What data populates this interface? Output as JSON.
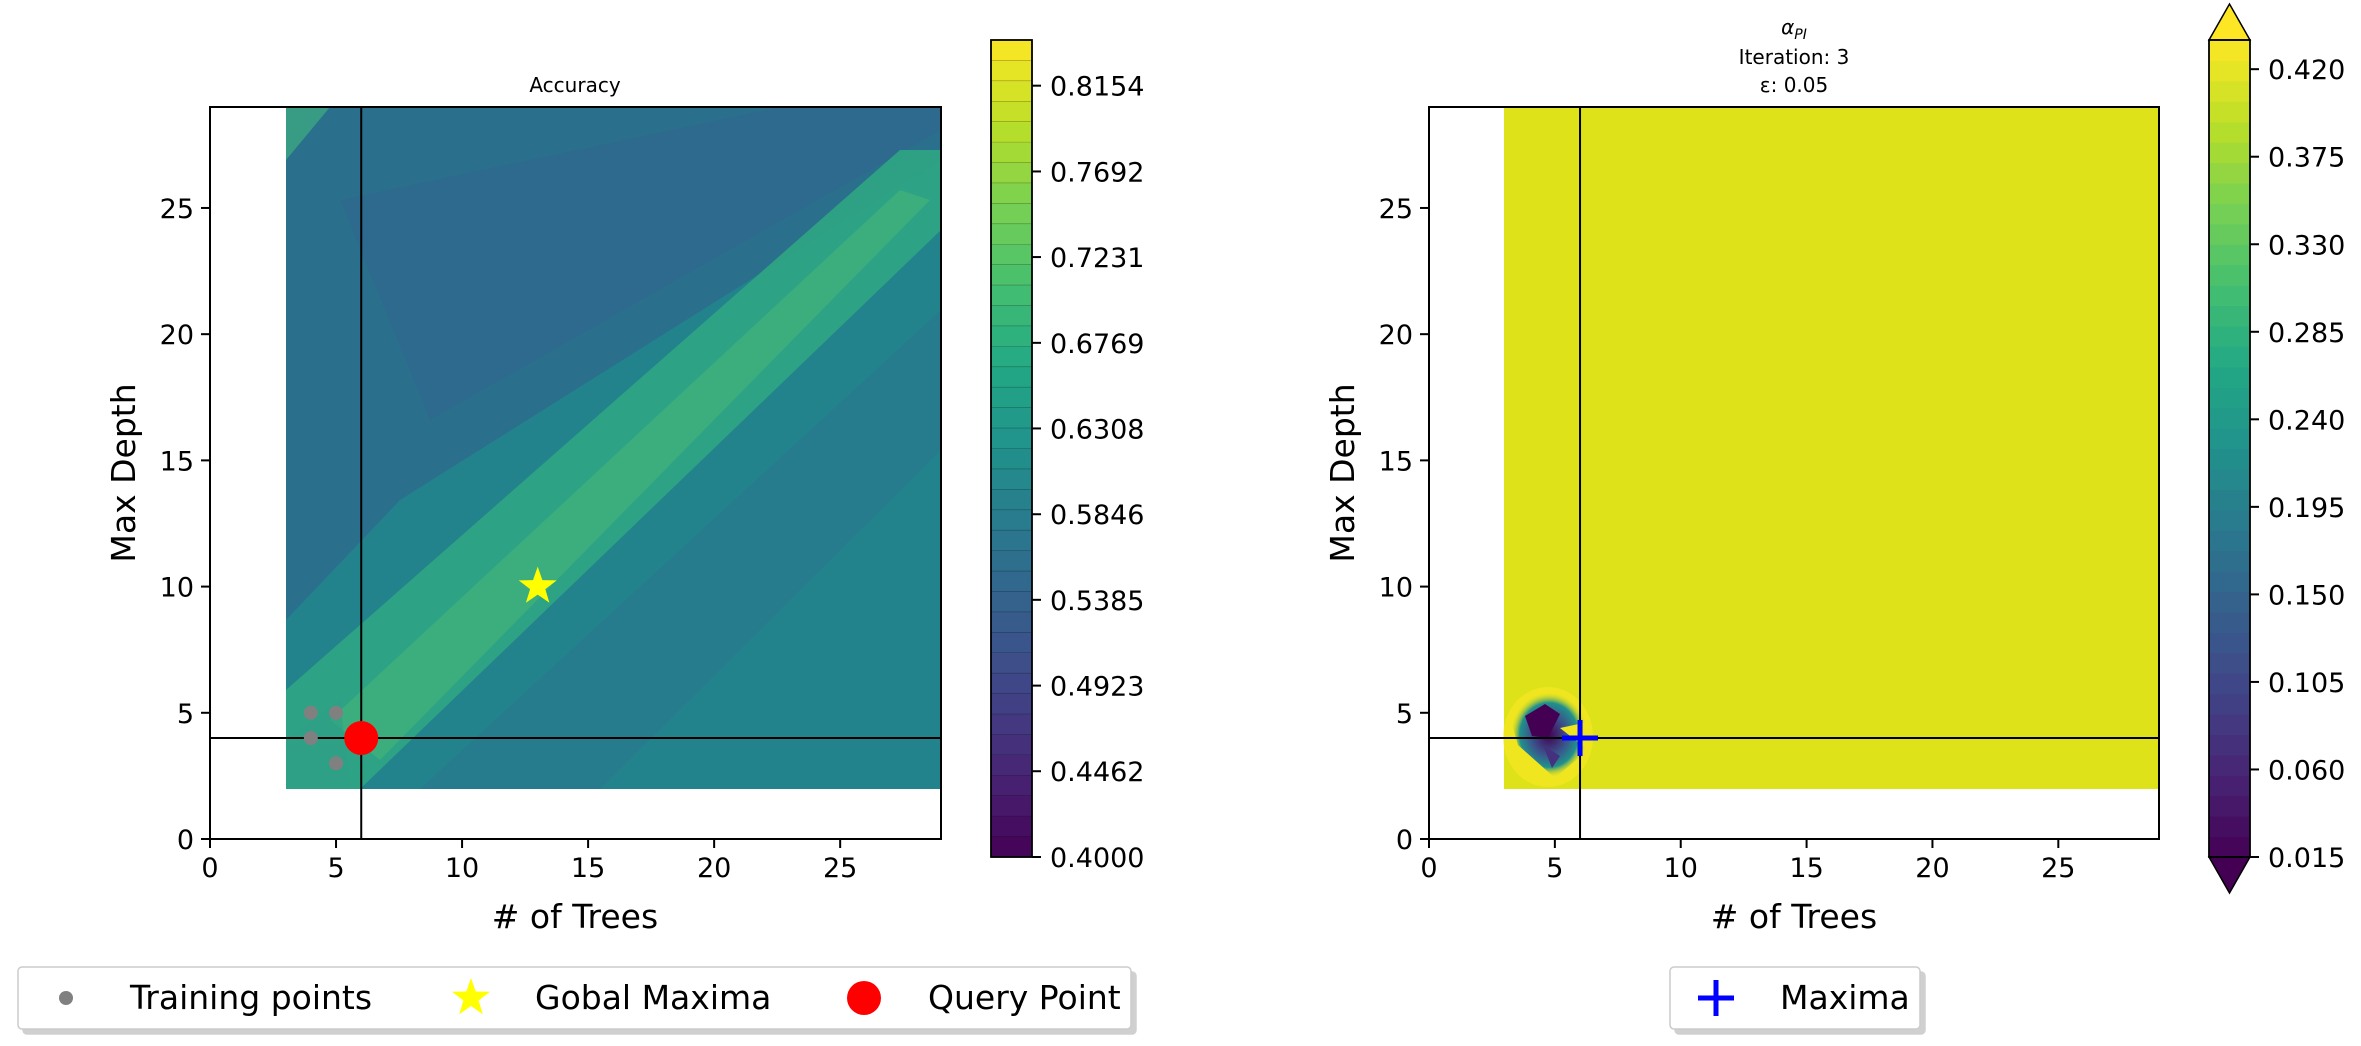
{
  "chart_data": [
    {
      "type": "heatmap",
      "title": "Accuracy",
      "xlabel": "# of Trees",
      "ylabel": "Max Depth",
      "xlim": [
        0,
        29
      ],
      "ylim": [
        0,
        29
      ],
      "xticks": [
        0,
        5,
        10,
        15,
        20,
        25
      ],
      "yticks": [
        0,
        5,
        10,
        15,
        20,
        25
      ],
      "heatmap_extent": {
        "x": [
          3,
          29
        ],
        "y": [
          2,
          29
        ]
      },
      "crosshair": {
        "x": 6,
        "y": 4
      },
      "colorbar": {
        "range": [
          0.4,
          0.84
        ],
        "ticks": [
          "0.4000",
          "0.4462",
          "0.4923",
          "0.5385",
          "0.5846",
          "0.6308",
          "0.6769",
          "0.7231",
          "0.7692",
          "0.8154"
        ],
        "colormap": "viridis",
        "extend": "none"
      },
      "training_points": [
        [
          4,
          5
        ],
        [
          5,
          5
        ],
        [
          4,
          4
        ],
        [
          5,
          3
        ]
      ],
      "global_maxima": [
        13,
        10
      ],
      "query_point": [
        6,
        4
      ],
      "colors": {
        "training": "#808080",
        "maxima": "#ffff00",
        "query": "#ff0000"
      }
    },
    {
      "type": "heatmap",
      "title_lines": [
        "α",
        "PI",
        "Iteration: 3",
        "ε: 0.05"
      ],
      "xlabel": "# of Trees",
      "ylabel": "Max Depth",
      "xlim": [
        0,
        29
      ],
      "ylim": [
        0,
        29
      ],
      "xticks": [
        0,
        5,
        10,
        15,
        20,
        25
      ],
      "yticks": [
        0,
        5,
        10,
        15,
        20,
        25
      ],
      "heatmap_extent": {
        "x": [
          3,
          29
        ],
        "y": [
          2,
          29
        ]
      },
      "crosshair": {
        "x": 6,
        "y": 4
      },
      "colorbar": {
        "range": [
          0.015,
          0.435
        ],
        "ticks": [
          "0.015",
          "0.060",
          "0.105",
          "0.150",
          "0.195",
          "0.240",
          "0.285",
          "0.330",
          "0.375",
          "0.420"
        ],
        "colormap": "viridis",
        "extend": "both"
      },
      "fill_value": 0.43,
      "maxima": [
        6,
        4
      ],
      "colors": {
        "fill": "#dde318",
        "maxima": "#0000ff"
      }
    }
  ],
  "legend_left": {
    "items": [
      {
        "label": "Training points",
        "marker": "dot",
        "color": "#808080"
      },
      {
        "label": "Gobal Maxima",
        "marker": "star",
        "color": "#ffff00"
      },
      {
        "label": "Query Point",
        "marker": "circle",
        "color": "#ff0000"
      }
    ]
  },
  "legend_right": {
    "items": [
      {
        "label": "Maxima",
        "marker": "plus",
        "color": "#0000ff"
      }
    ]
  }
}
